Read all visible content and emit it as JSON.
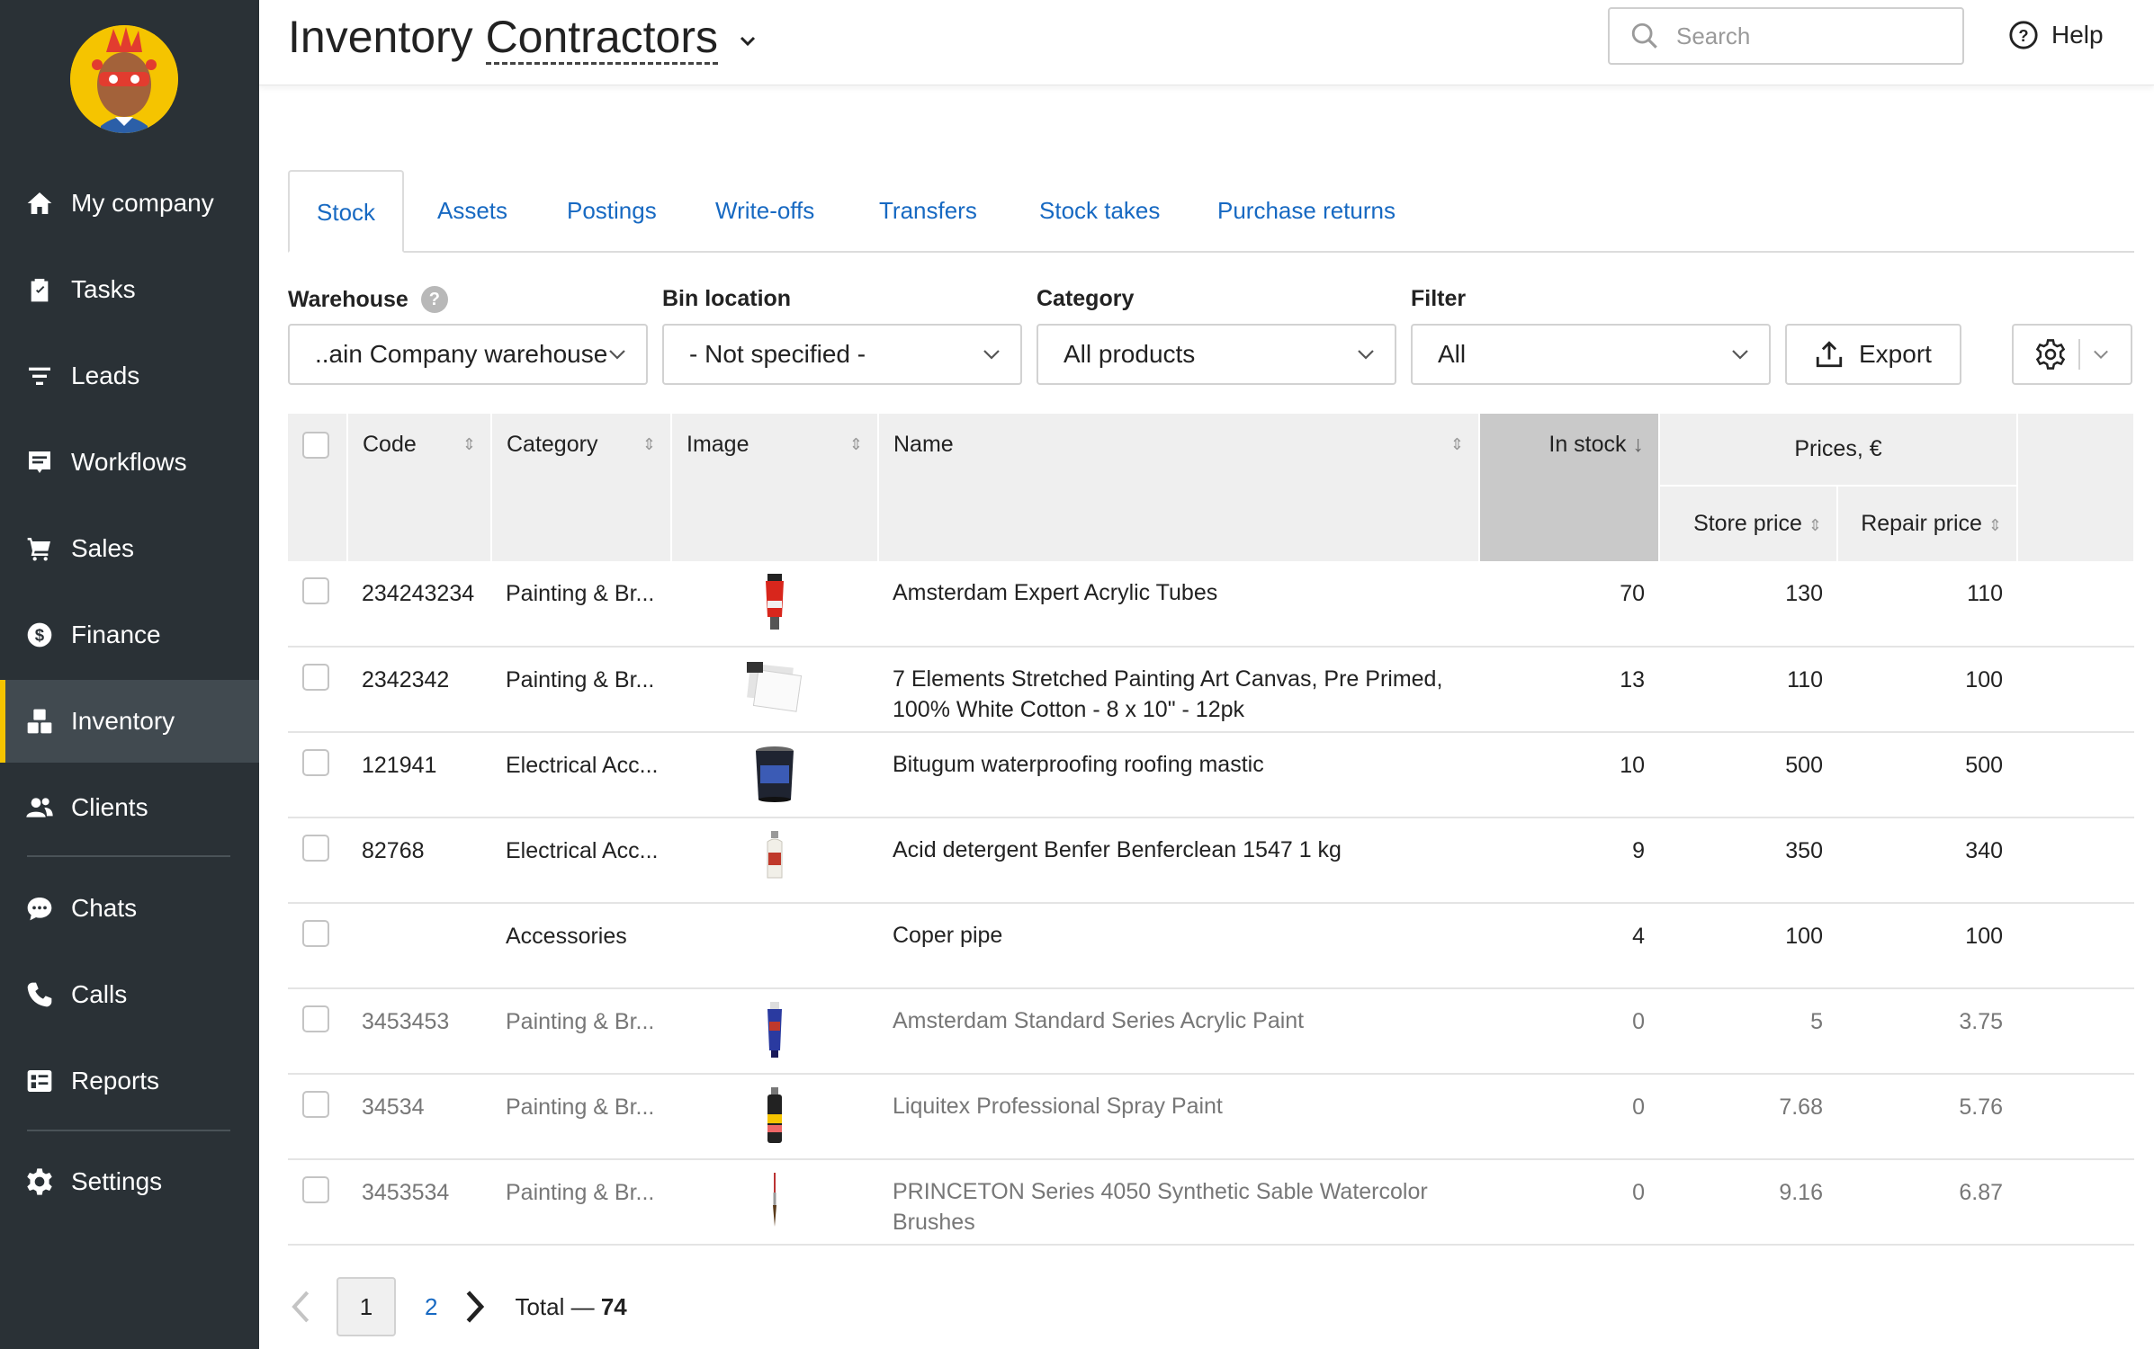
{
  "sidebar": {
    "items": [
      {
        "label": "My company",
        "icon": "home-icon"
      },
      {
        "label": "Tasks",
        "icon": "clipboard-icon"
      },
      {
        "label": "Leads",
        "icon": "filter-icon"
      },
      {
        "label": "Workflows",
        "icon": "board-icon"
      },
      {
        "label": "Sales",
        "icon": "cart-icon"
      },
      {
        "label": "Finance",
        "icon": "dollar-icon"
      },
      {
        "label": "Inventory",
        "icon": "boxes-icon"
      },
      {
        "label": "Clients",
        "icon": "people-icon"
      },
      {
        "label": "Chats",
        "icon": "chat-icon"
      },
      {
        "label": "Calls",
        "icon": "phone-icon"
      },
      {
        "label": "Reports",
        "icon": "reports-icon"
      },
      {
        "label": "Settings",
        "icon": "gear-icon"
      }
    ],
    "active": "Inventory"
  },
  "header": {
    "title_part1": "Inventory ",
    "title_part2": "Contractors",
    "search_placeholder": "Search",
    "help_label": "Help"
  },
  "tabs": [
    "Stock",
    "Assets",
    "Postings",
    "Write-offs",
    "Transfers",
    "Stock takes",
    "Purchase returns"
  ],
  "filters": {
    "warehouse": {
      "label": "Warehouse",
      "value": "..ain Company warehouse"
    },
    "bin_location": {
      "label": "Bin location",
      "value": "- Not specified -"
    },
    "category": {
      "label": "Category",
      "value": "All products"
    },
    "filter": {
      "label": "Filter",
      "value": "All"
    },
    "export_label": "Export"
  },
  "table": {
    "headers": {
      "code": "Code",
      "category": "Category",
      "image": "Image",
      "name": "Name",
      "in_stock": "In stock",
      "prices": "Prices, €",
      "store_price": "Store price",
      "repair_price": "Repair price"
    },
    "rows": [
      {
        "code": "234243234",
        "category": "Painting & Br...",
        "name": "Amsterdam Expert Acrylic Tubes",
        "stock": "70",
        "store": "130",
        "repair": "110",
        "img": "red-tube"
      },
      {
        "code": "2342342",
        "category": "Painting & Br...",
        "name": "7 Elements Stretched Painting Art Canvas, Pre Primed, 100% White Cotton - 8 x 10\" - 12pk",
        "stock": "13",
        "store": "110",
        "repair": "100",
        "img": "canvas"
      },
      {
        "code": "121941",
        "category": "Electrical Acc...",
        "name": "Bitugum waterproofing roofing mastic",
        "stock": "10",
        "store": "500",
        "repair": "500",
        "img": "bucket"
      },
      {
        "code": "82768",
        "category": "Electrical Acc...",
        "name": "Acid detergent Benfer Benferclean 1547 1 kg",
        "stock": "9",
        "store": "350",
        "repair": "340",
        "img": "bottle"
      },
      {
        "code": "",
        "category": "Accessories",
        "name": "Coper pipe",
        "stock": "4",
        "store": "100",
        "repair": "100",
        "img": ""
      },
      {
        "code": "3453453",
        "category": "Painting & Br...",
        "name": "Amsterdam Standard Series Acrylic Paint",
        "stock": "0",
        "store": "5",
        "repair": "3.75",
        "img": "blue-tube"
      },
      {
        "code": "34534",
        "category": "Painting & Br...",
        "name": "Liquitex Professional Spray Paint",
        "stock": "0",
        "store": "7.68",
        "repair": "5.76",
        "img": "spray"
      },
      {
        "code": "3453534",
        "category": "Painting & Br...",
        "name": "PRINCETON Series 4050 Synthetic Sable Watercolor Brushes",
        "stock": "0",
        "store": "9.16",
        "repair": "6.87",
        "img": "brush"
      }
    ]
  },
  "pagination": {
    "current": "1",
    "next_page": "2",
    "total_label": "Total — ",
    "total": "74"
  },
  "colors": {
    "sidebar": "#2a3136",
    "accent": "#f5c400",
    "link": "#1769c2"
  }
}
